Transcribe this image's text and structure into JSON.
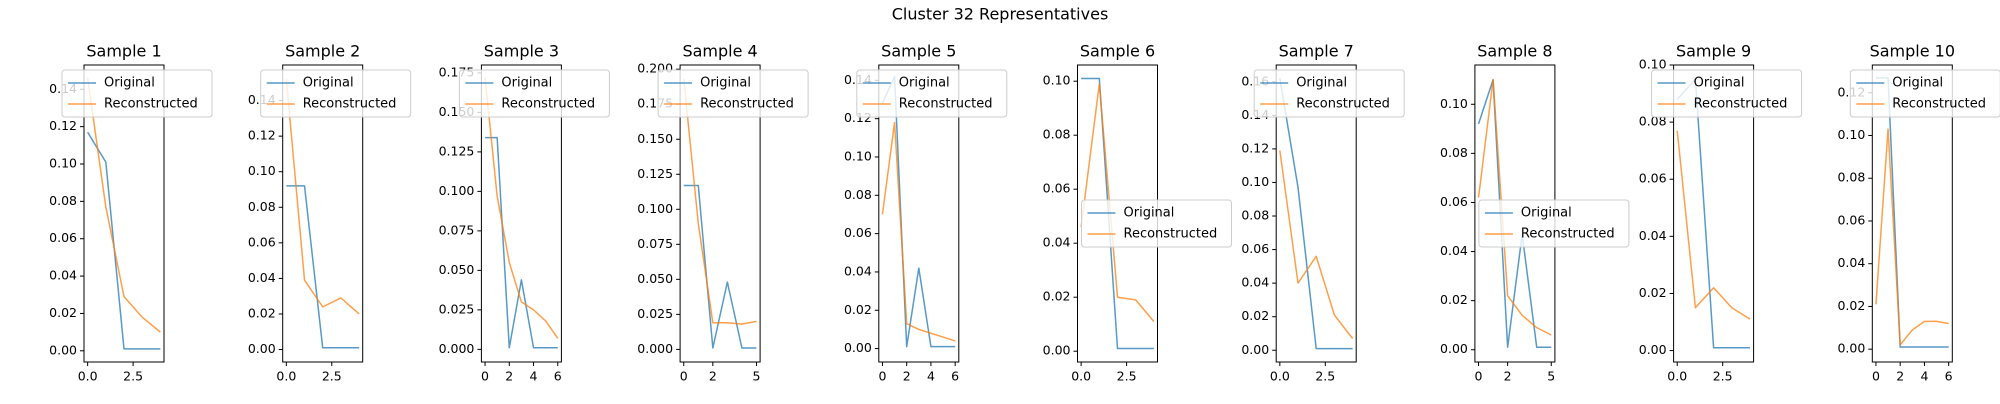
{
  "title": "Cluster 32 Representatives",
  "chart_data": [
    {
      "type": "line",
      "title": "Sample 1",
      "x": [
        0,
        1,
        2,
        3,
        4
      ],
      "series": [
        {
          "name": "Original",
          "color": "#1f77b4",
          "values": [
            0.117,
            0.101,
            0.001,
            0.001,
            0.001
          ]
        },
        {
          "name": "Reconstructed",
          "color": "#ff7f0e",
          "values": [
            0.146,
            0.077,
            0.029,
            0.018,
            0.01
          ]
        }
      ],
      "xlim": [
        -0.2,
        4.2
      ],
      "ylim": [
        -0.006,
        0.153
      ],
      "xticks": [
        {
          "value": 0,
          "label": "0.0"
        },
        {
          "value": 2.5,
          "label": "2.5"
        }
      ],
      "yticks": [
        {
          "value": 0,
          "label": "0.00"
        },
        0.02,
        0.04,
        0.06,
        0.08,
        {
          "value": 0.1,
          "label": "0.10"
        },
        0.12,
        0.14
      ],
      "legend": "upper left"
    },
    {
      "type": "line",
      "title": "Sample 2",
      "x": [
        0,
        1,
        2,
        3,
        4
      ],
      "series": [
        {
          "name": "Original",
          "color": "#1f77b4",
          "values": [
            0.092,
            0.092,
            0.001,
            0.001,
            0.001
          ]
        },
        {
          "name": "Reconstructed",
          "color": "#ff7f0e",
          "values": [
            0.152,
            0.039,
            0.024,
            0.029,
            0.02
          ]
        }
      ],
      "xlim": [
        -0.2,
        4.2
      ],
      "ylim": [
        -0.007,
        0.16
      ],
      "xticks": [
        {
          "value": 0,
          "label": "0.0"
        },
        {
          "value": 2.5,
          "label": "2.5"
        }
      ],
      "yticks": [
        {
          "value": 0,
          "label": "0.00"
        },
        0.02,
        0.04,
        0.06,
        0.08,
        {
          "value": 0.1,
          "label": "0.10"
        },
        0.12,
        0.14
      ],
      "legend": "upper left"
    },
    {
      "type": "line",
      "title": "Sample 3",
      "x": [
        0,
        1,
        2,
        3,
        4,
        5,
        6
      ],
      "series": [
        {
          "name": "Original",
          "color": "#1f77b4",
          "values": [
            0.134,
            0.134,
            0.001,
            0.044,
            0.001,
            0.001,
            0.001
          ]
        },
        {
          "name": "Reconstructed",
          "color": "#ff7f0e",
          "values": [
            0.172,
            0.097,
            0.055,
            0.03,
            0.025,
            0.018,
            0.007
          ]
        }
      ],
      "xlim": [
        -0.3,
        6.3
      ],
      "ylim": [
        -0.008,
        0.18
      ],
      "xticks": [
        0,
        2,
        4,
        6
      ],
      "yticks": [
        {
          "value": 0,
          "label": "0.000"
        },
        0.025,
        {
          "value": 0.05,
          "label": "0.050"
        },
        0.075,
        {
          "value": 0.1,
          "label": "0.100"
        },
        0.125,
        {
          "value": 0.15,
          "label": "0.150"
        },
        0.175
      ],
      "legend": "upper left"
    },
    {
      "type": "line",
      "title": "Sample 4",
      "x": [
        0,
        1,
        2,
        3,
        4,
        5
      ],
      "series": [
        {
          "name": "Original",
          "color": "#1f77b4",
          "values": [
            0.117,
            0.117,
            0.001,
            0.048,
            0.001,
            0.001
          ]
        },
        {
          "name": "Reconstructed",
          "color": "#ff7f0e",
          "values": [
            0.193,
            0.09,
            0.019,
            0.019,
            0.018,
            0.02
          ]
        }
      ],
      "xlim": [
        -0.25,
        5.25
      ],
      "ylim": [
        -0.009,
        0.203
      ],
      "xticks": [
        0,
        2,
        5
      ],
      "yticks": [
        {
          "value": 0,
          "label": "0.000"
        },
        0.025,
        {
          "value": 0.05,
          "label": "0.050"
        },
        0.075,
        {
          "value": 0.1,
          "label": "0.100"
        },
        0.125,
        {
          "value": 0.15,
          "label": "0.150"
        },
        0.175,
        {
          "value": 0.2,
          "label": "0.200"
        }
      ],
      "legend": "upper left"
    },
    {
      "type": "line",
      "title": "Sample 5",
      "x": [
        0,
        1,
        2,
        3,
        4,
        5,
        6
      ],
      "series": [
        {
          "name": "Original",
          "color": "#1f77b4",
          "values": [
            0.128,
            0.142,
            0.001,
            0.042,
            0.001,
            0.001,
            0.001
          ]
        },
        {
          "name": "Reconstructed",
          "color": "#ff7f0e",
          "values": [
            0.07,
            0.118,
            0.013,
            0.01,
            0.008,
            0.006,
            0.004
          ]
        }
      ],
      "xlim": [
        -0.3,
        6.3
      ],
      "ylim": [
        -0.007,
        0.148
      ],
      "xticks": [
        0,
        2,
        4,
        6
      ],
      "yticks": [
        {
          "value": 0,
          "label": "0.00"
        },
        0.02,
        0.04,
        0.06,
        0.08,
        {
          "value": 0.1,
          "label": "0.10"
        },
        0.12,
        0.14
      ],
      "legend": "upper left"
    },
    {
      "type": "line",
      "title": "Sample 6",
      "x": [
        0,
        1,
        2,
        3,
        4
      ],
      "series": [
        {
          "name": "Original",
          "color": "#1f77b4",
          "values": [
            0.101,
            0.101,
            0.001,
            0.001,
            0.001
          ]
        },
        {
          "name": "Reconstructed",
          "color": "#ff7f0e",
          "values": [
            0.046,
            0.099,
            0.02,
            0.019,
            0.011
          ]
        }
      ],
      "xlim": [
        -0.2,
        4.2
      ],
      "ylim": [
        -0.004,
        0.106
      ],
      "xticks": [
        {
          "value": 0,
          "label": "0.0"
        },
        {
          "value": 2.5,
          "label": "2.5"
        }
      ],
      "yticks": [
        {
          "value": 0,
          "label": "0.00"
        },
        0.02,
        0.04,
        0.06,
        0.08,
        {
          "value": 0.1,
          "label": "0.10"
        }
      ],
      "legend": "center left"
    },
    {
      "type": "line",
      "title": "Sample 7",
      "x": [
        0,
        1,
        2,
        3,
        4
      ],
      "series": [
        {
          "name": "Original",
          "color": "#1f77b4",
          "values": [
            0.162,
            0.097,
            0.001,
            0.001,
            0.001
          ]
        },
        {
          "name": "Reconstructed",
          "color": "#ff7f0e",
          "values": [
            0.119,
            0.04,
            0.056,
            0.021,
            0.007
          ]
        }
      ],
      "xlim": [
        -0.2,
        4.2
      ],
      "ylim": [
        -0.007,
        0.17
      ],
      "xticks": [
        {
          "value": 0,
          "label": "0.0"
        },
        {
          "value": 2.5,
          "label": "2.5"
        }
      ],
      "yticks": [
        {
          "value": 0,
          "label": "0.00"
        },
        0.02,
        0.04,
        0.06,
        0.08,
        {
          "value": 0.1,
          "label": "0.10"
        },
        0.12,
        0.14,
        0.16
      ],
      "legend": "upper left"
    },
    {
      "type": "line",
      "title": "Sample 8",
      "x": [
        0,
        1,
        2,
        3,
        4,
        5
      ],
      "series": [
        {
          "name": "Original",
          "color": "#1f77b4",
          "values": [
            0.092,
            0.11,
            0.001,
            0.047,
            0.001,
            0.001
          ]
        },
        {
          "name": "Reconstructed",
          "color": "#ff7f0e",
          "values": [
            0.062,
            0.11,
            0.022,
            0.014,
            0.009,
            0.006
          ]
        }
      ],
      "xlim": [
        -0.25,
        5.25
      ],
      "ylim": [
        -0.005,
        0.116
      ],
      "xticks": [
        0,
        2,
        5
      ],
      "yticks": [
        {
          "value": 0,
          "label": "0.00"
        },
        0.02,
        0.04,
        0.06,
        0.08,
        {
          "value": 0.1,
          "label": "0.10"
        }
      ],
      "legend": "center left"
    },
    {
      "type": "line",
      "title": "Sample 9",
      "x": [
        0,
        1,
        2,
        3,
        4
      ],
      "series": [
        {
          "name": "Original",
          "color": "#1f77b4",
          "values": [
            0.088,
            0.095,
            0.001,
            0.001,
            0.001
          ]
        },
        {
          "name": "Reconstructed",
          "color": "#ff7f0e",
          "values": [
            0.077,
            0.015,
            0.022,
            0.015,
            0.011
          ]
        }
      ],
      "xlim": [
        -0.2,
        4.2
      ],
      "ylim": [
        -0.004,
        0.1
      ],
      "xticks": [
        {
          "value": 0,
          "label": "0.0"
        },
        {
          "value": 2.5,
          "label": "2.5"
        }
      ],
      "yticks": [
        {
          "value": 0,
          "label": "0.00"
        },
        0.02,
        0.04,
        0.06,
        0.08,
        {
          "value": 0.1,
          "label": "0.10"
        }
      ],
      "legend": "upper left"
    },
    {
      "type": "line",
      "title": "Sample 10",
      "x": [
        0,
        1,
        2,
        3,
        4,
        5,
        6
      ],
      "series": [
        {
          "name": "Original",
          "color": "#1f77b4",
          "values": [
            0.127,
            0.127,
            0.001,
            0.001,
            0.001,
            0.001,
            0.001
          ]
        },
        {
          "name": "Reconstructed",
          "color": "#ff7f0e",
          "values": [
            0.021,
            0.103,
            0.002,
            0.009,
            0.013,
            0.013,
            0.012
          ]
        }
      ],
      "xlim": [
        -0.3,
        6.3
      ],
      "ylim": [
        -0.006,
        0.133
      ],
      "xticks": [
        0,
        2,
        4,
        6
      ],
      "yticks": [
        {
          "value": 0,
          "label": "0.00"
        },
        0.02,
        0.04,
        0.06,
        0.08,
        {
          "value": 0.1,
          "label": "0.10"
        },
        0.12
      ],
      "legend": "upper left"
    }
  ]
}
